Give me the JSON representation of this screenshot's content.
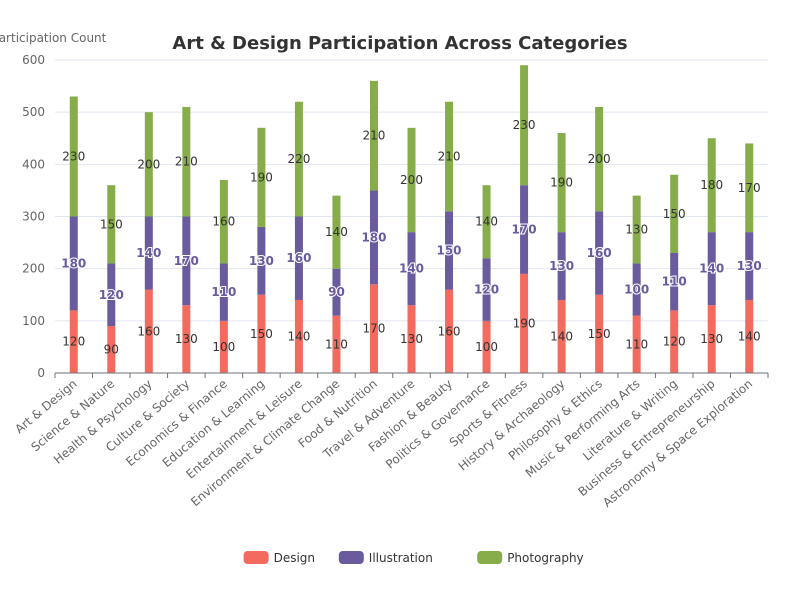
{
  "chart_data": {
    "type": "bar",
    "stacked": true,
    "title": "Art & Design Participation Across Categories",
    "ylabel": "Participation Count",
    "xlabel": "",
    "ylim": [
      0,
      600
    ],
    "yticks": [
      0,
      100,
      200,
      300,
      400,
      500,
      600
    ],
    "grid": true,
    "legend_position": "bottom",
    "categories": [
      "Art & Design",
      "Science & Nature",
      "Health & Psychology",
      "Culture & Society",
      "Economics & Finance",
      "Education & Learning",
      "Entertainment & Leisure",
      "Environment & Climate Change",
      "Food & Nutrition",
      "Travel & Adventure",
      "Fashion & Beauty",
      "Politics & Governance",
      "Sports & Fitness",
      "History & Archaeology",
      "Philosophy & Ethics",
      "Music & Performing Arts",
      "Literature & Writing",
      "Business & Entrepreneurship",
      "Astronomy & Space Exploration"
    ],
    "series": [
      {
        "name": "Design",
        "color": "#f26b5e",
        "values": [
          120,
          90,
          160,
          130,
          100,
          150,
          140,
          110,
          170,
          130,
          160,
          100,
          190,
          140,
          150,
          110,
          120,
          130,
          140
        ]
      },
      {
        "name": "Illustration",
        "color": "#6a5a9e",
        "values": [
          180,
          120,
          140,
          170,
          110,
          130,
          160,
          90,
          180,
          140,
          150,
          120,
          170,
          130,
          160,
          100,
          110,
          140,
          130
        ]
      },
      {
        "name": "Photography",
        "color": "#86ad4a",
        "values": [
          230,
          150,
          200,
          210,
          160,
          190,
          220,
          140,
          210,
          200,
          210,
          140,
          230,
          190,
          200,
          130,
          150,
          180,
          170
        ]
      }
    ]
  }
}
